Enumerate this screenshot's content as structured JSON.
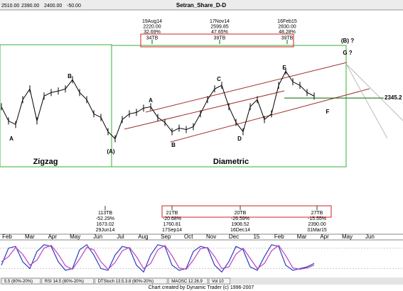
{
  "chart_data": {
    "type": "line",
    "title": "Setran_Share_D-D",
    "header": [
      "2510.00",
      "2390.00",
      "2400.00",
      "-50.00"
    ],
    "categories": [
      "Feb",
      "Mar",
      "Apr",
      "May",
      "Jun",
      "Jul",
      "Aug",
      "Sep",
      "Oct",
      "Nov",
      "Dec",
      "15",
      "Feb",
      "Mar",
      "Apr",
      "May",
      "Jun"
    ],
    "ylim": [
      1250,
      3680
    ],
    "price": {
      "color": "#000000",
      "values": [
        2206,
        1980,
        1923,
        2320,
        2490,
        1980,
        2376,
        2433,
        2456,
        2490,
        2637,
        2433,
        2320,
        2093,
        2036,
        1809,
        1696,
        2002,
        2093,
        2116,
        2184,
        2206,
        2036,
        1957,
        1809,
        1866,
        1843,
        1889,
        2093,
        2320,
        2490,
        2547,
        2206,
        1957,
        1809,
        2206,
        2320,
        2002,
        2093,
        2547,
        2773,
        2603,
        2547,
        2433,
        2376
      ]
    },
    "level": {
      "value": 2345.2,
      "color": "#006400"
    },
    "top_annotations": [
      {
        "date": "19Aug14",
        "price": "2220.00",
        "change": "32.69%",
        "bars": "34TB"
      },
      {
        "date": "17Nov14",
        "price": "2599.85",
        "change": "47.65%",
        "bars": "39TB"
      },
      {
        "date": "16Feb15",
        "price": "2830.00",
        "change": "48.28%",
        "bars": "39TB"
      }
    ],
    "bottom_annotations": [
      {
        "bars": "113TB",
        "change": "-52.29%",
        "price": "1673.02",
        "date": "29Jun14"
      },
      {
        "bars": "21TB",
        "change": "-20.68%",
        "price": "1760.81",
        "date": "17Sep14"
      },
      {
        "bars": "20TB",
        "change": "-26.59%",
        "price": "1908.52",
        "date": "16Dec14"
      },
      {
        "bars": "27TB",
        "change": "-15.55%",
        "price": "2390.00",
        "date": "31Mar15"
      }
    ],
    "wave_labels": [
      "A",
      "B",
      "(A)",
      "A",
      "B",
      "C",
      "D",
      "E",
      "F",
      "G ?",
      "(B) ?"
    ],
    "patterns": [
      "Zigzag",
      "Diametric"
    ],
    "oscillator": {
      "ylim": [
        0,
        100
      ],
      "series": [
        {
          "color": "#2a3fc0",
          "values": [
            30,
            80,
            85,
            40,
            20,
            70,
            90,
            85,
            40,
            15,
            20,
            75,
            90,
            60,
            20,
            15,
            60,
            85,
            80,
            30,
            10,
            60,
            90,
            85,
            30,
            15,
            20,
            70,
            85,
            80,
            30,
            10,
            40,
            85,
            75,
            25,
            15,
            55,
            90,
            85,
            30,
            15,
            20,
            25,
            35
          ]
        },
        {
          "color": "#c040c0",
          "values": [
            40,
            55,
            82,
            62,
            30,
            45,
            80,
            88,
            62,
            28,
            18,
            48,
            82,
            75,
            40,
            18,
            38,
            72,
            82,
            55,
            20,
            35,
            75,
            88,
            58,
            22,
            18,
            45,
            78,
            82,
            55,
            20,
            25,
            62,
            80,
            50,
            20,
            35,
            72,
            88,
            58,
            22,
            18,
            22,
            30
          ]
        }
      ]
    },
    "indicator_tabs": [
      "5.5 (80%-20%)",
      "RSI 14.5 (80%-20%)",
      "DTStoch 13.5.3.8 (80%-20%)",
      "MAOSC 12.26.9",
      "Vol 10"
    ],
    "footer": "Chart created by Dynamic Trader (c) 1996-2007"
  }
}
